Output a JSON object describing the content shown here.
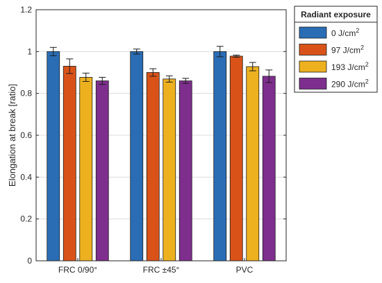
{
  "chart_data": {
    "type": "bar",
    "title": "",
    "xlabel": "",
    "ylabel": "Elongation at break [ratio]",
    "ylim": [
      0,
      1.2
    ],
    "yticks": [
      0,
      0.2,
      0.4,
      0.6,
      0.8,
      1,
      1.2
    ],
    "ytick_labels": [
      "0",
      "0.2",
      "0.4",
      "0.6",
      "0.8",
      "1",
      "1.2"
    ],
    "grid": true,
    "categories": [
      "FRC 0/90°",
      "FRC ±45°",
      "PVC"
    ],
    "legend": {
      "title": "Radiant exposure",
      "placement": "outside-right-top"
    },
    "series": [
      {
        "name": "0 J/cm",
        "sup": "2",
        "color": "#2a6db5",
        "values": [
          1.0,
          1.0,
          1.0
        ],
        "errors": [
          0.02,
          0.012,
          0.025
        ]
      },
      {
        "name": "97 J/cm",
        "sup": "2",
        "color": "#d95319",
        "values": [
          0.93,
          0.9,
          0.978
        ],
        "errors": [
          0.035,
          0.018,
          0.005
        ]
      },
      {
        "name": "193 J/cm",
        "sup": "2",
        "color": "#edb120",
        "values": [
          0.877,
          0.869,
          0.928
        ],
        "errors": [
          0.02,
          0.015,
          0.02
        ]
      },
      {
        "name": "290 J/cm",
        "sup": "2",
        "color": "#7e2f8e",
        "values": [
          0.86,
          0.86,
          0.882
        ],
        "errors": [
          0.017,
          0.012,
          0.03
        ]
      }
    ]
  }
}
